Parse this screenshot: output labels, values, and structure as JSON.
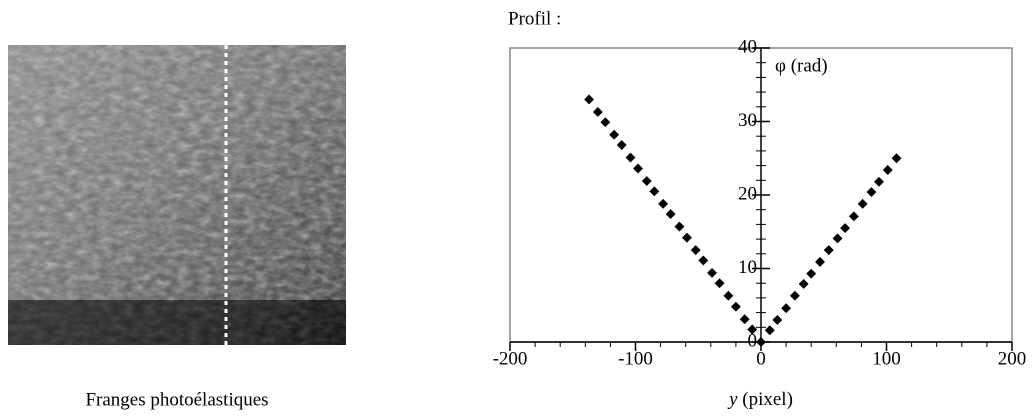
{
  "image_caption": "Franges photoélastiques",
  "chart_data": {
    "type": "scatter",
    "title": "Profil :",
    "x_label_var": "y",
    "x_label_unit": "(pixel)",
    "y_label": "φ (rad)",
    "xlim": [
      -200,
      200
    ],
    "ylim": [
      0,
      40
    ],
    "xticks": [
      -200,
      -100,
      0,
      100,
      200
    ],
    "yticks": [
      0,
      10,
      20,
      30,
      40
    ],
    "xminorticks": [
      -180,
      -160,
      -140,
      -120,
      -80,
      -60,
      -40,
      -20,
      20,
      40,
      60,
      80,
      120,
      140,
      160,
      180
    ],
    "yminorticks": [
      2,
      4,
      6,
      8,
      12,
      14,
      16,
      18,
      22,
      24,
      26,
      28,
      32,
      34,
      36,
      38
    ],
    "series": [
      {
        "color": "#000000",
        "x": [
          -137,
          -130,
          -124,
          -117,
          -111,
          -104,
          -98,
          -91,
          -85,
          -78,
          -72,
          -65,
          -59,
          -52,
          -46,
          -39,
          -33,
          -26,
          -20,
          -13,
          -7,
          0,
          7,
          13,
          20,
          27,
          34,
          40,
          47,
          54,
          61,
          67,
          74,
          81,
          88,
          94,
          101,
          108
        ],
        "values": [
          33,
          31.3,
          29.9,
          28.2,
          26.8,
          25.1,
          23.6,
          21.9,
          20.5,
          18.8,
          17.4,
          15.7,
          14.2,
          12.5,
          11.1,
          9.4,
          8,
          6.3,
          4.8,
          3.1,
          1.7,
          0,
          1.6,
          3,
          4.6,
          6.3,
          7.9,
          9.3,
          10.9,
          12.5,
          14.1,
          15.5,
          17.1,
          18.8,
          20.4,
          21.8,
          23.4,
          25
        ]
      }
    ]
  }
}
